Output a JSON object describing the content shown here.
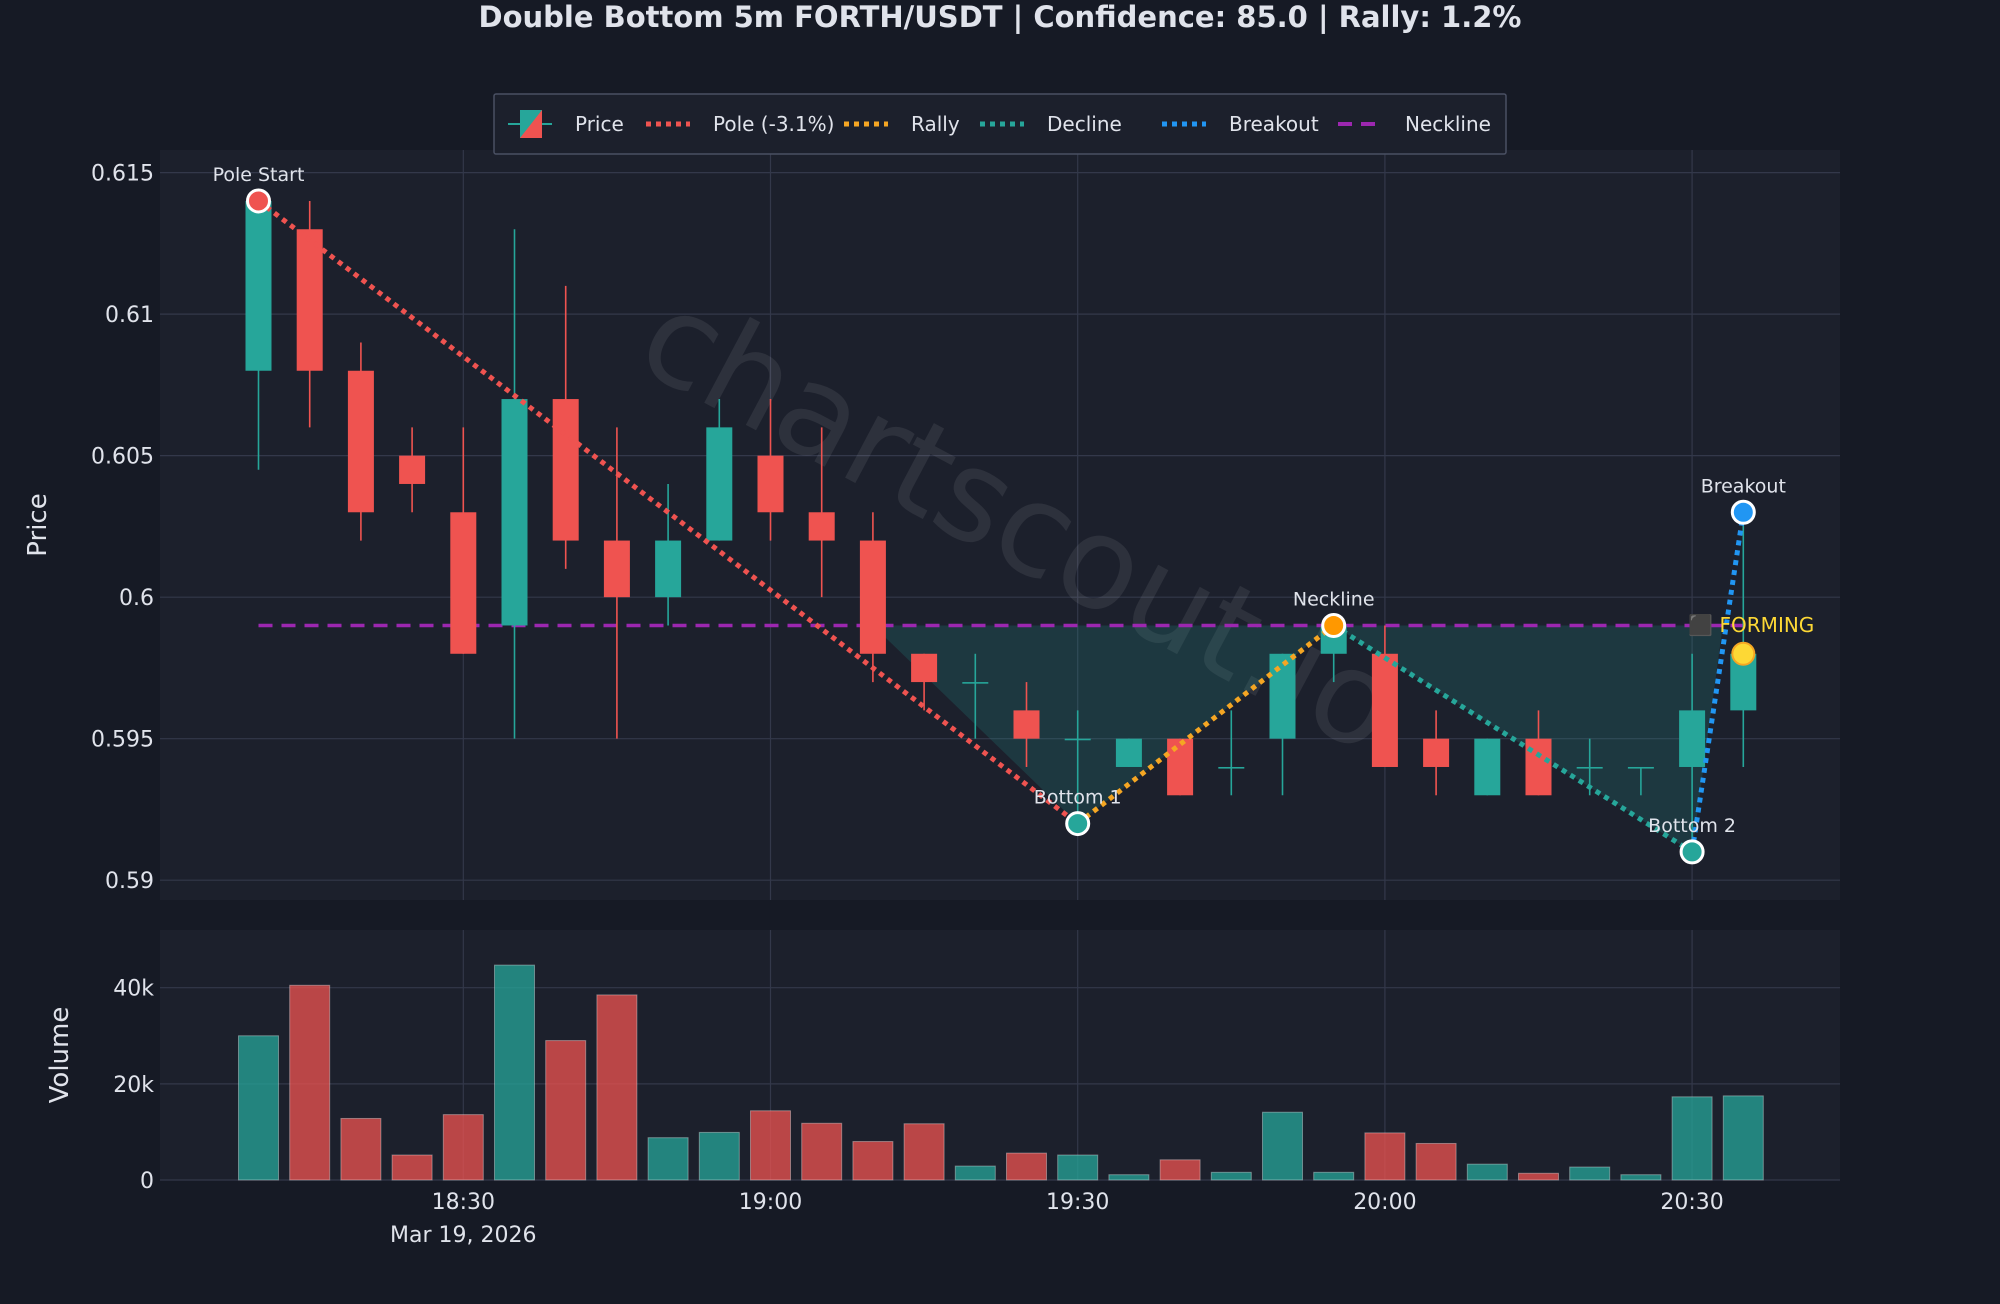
{
  "title": "Double Bottom 5m FORTH/USDT | Confidence: 85.0 | Rally: 1.2%",
  "watermark": "chartscout.io",
  "colors": {
    "background": "#161a25",
    "plot_bg": "#1c202c",
    "grid": "#33384a",
    "up": "#26a69a",
    "down": "#ef5350",
    "pole": "#ef5350",
    "rally": "#f5a623",
    "decline": "#26a69a",
    "breakout": "#2196f3",
    "neckline": "#9c27b0",
    "forming": "#fdd835",
    "text": "#e0e3eb"
  },
  "legend": [
    {
      "key": "price",
      "label": "Price"
    },
    {
      "key": "pole",
      "label": "Pole (-3.1%)"
    },
    {
      "key": "rally",
      "label": "Rally"
    },
    {
      "key": "decline",
      "label": "Decline"
    },
    {
      "key": "breakout",
      "label": "Breakout"
    },
    {
      "key": "neckline",
      "label": "Neckline"
    }
  ],
  "forming_label": "⬛ FORMING",
  "chart_data": [
    {
      "type": "candlestick",
      "ylabel": "Price",
      "ylim": [
        0.5893,
        0.6158
      ],
      "yticks": [
        {
          "value": 0.59,
          "label": "0.59"
        },
        {
          "value": 0.595,
          "label": "0.595"
        },
        {
          "value": 0.6,
          "label": "0.6"
        },
        {
          "value": 0.605,
          "label": "0.605"
        },
        {
          "value": 0.61,
          "label": "0.61"
        },
        {
          "value": 0.615,
          "label": "0.615"
        }
      ],
      "xticks": [
        {
          "time": "18:30",
          "label": "18:30",
          "sublabel": "Mar 19, 2026"
        },
        {
          "time": "19:00",
          "label": "19:00"
        },
        {
          "time": "19:30",
          "label": "19:30"
        },
        {
          "time": "20:00",
          "label": "20:00"
        },
        {
          "time": "20:30",
          "label": "20:30"
        }
      ],
      "candles": [
        {
          "time": "18:10",
          "open": 0.608,
          "high": 0.614,
          "low": 0.6045,
          "close": 0.614
        },
        {
          "time": "18:15",
          "open": 0.613,
          "high": 0.614,
          "low": 0.606,
          "close": 0.608
        },
        {
          "time": "18:20",
          "open": 0.608,
          "high": 0.609,
          "low": 0.602,
          "close": 0.603
        },
        {
          "time": "18:25",
          "open": 0.605,
          "high": 0.606,
          "low": 0.603,
          "close": 0.604
        },
        {
          "time": "18:30",
          "open": 0.603,
          "high": 0.606,
          "low": 0.598,
          "close": 0.598
        },
        {
          "time": "18:35",
          "open": 0.599,
          "high": 0.613,
          "low": 0.595,
          "close": 0.607
        },
        {
          "time": "18:40",
          "open": 0.607,
          "high": 0.611,
          "low": 0.601,
          "close": 0.602
        },
        {
          "time": "18:45",
          "open": 0.602,
          "high": 0.606,
          "low": 0.595,
          "close": 0.6
        },
        {
          "time": "18:50",
          "open": 0.6,
          "high": 0.604,
          "low": 0.599,
          "close": 0.602
        },
        {
          "time": "18:55",
          "open": 0.602,
          "high": 0.607,
          "low": 0.602,
          "close": 0.606
        },
        {
          "time": "19:00",
          "open": 0.605,
          "high": 0.607,
          "low": 0.602,
          "close": 0.603
        },
        {
          "time": "19:05",
          "open": 0.603,
          "high": 0.606,
          "low": 0.6,
          "close": 0.602
        },
        {
          "time": "19:10",
          "open": 0.602,
          "high": 0.603,
          "low": 0.597,
          "close": 0.598
        },
        {
          "time": "19:15",
          "open": 0.598,
          "high": 0.598,
          "low": 0.596,
          "close": 0.597
        },
        {
          "time": "19:20",
          "open": 0.597,
          "high": 0.598,
          "low": 0.595,
          "close": 0.597
        },
        {
          "time": "19:25",
          "open": 0.596,
          "high": 0.597,
          "low": 0.594,
          "close": 0.595
        },
        {
          "time": "19:30",
          "open": 0.595,
          "high": 0.596,
          "low": 0.592,
          "close": 0.595
        },
        {
          "time": "19:35",
          "open": 0.594,
          "high": 0.595,
          "low": 0.594,
          "close": 0.595
        },
        {
          "time": "19:40",
          "open": 0.595,
          "high": 0.595,
          "low": 0.593,
          "close": 0.593
        },
        {
          "time": "19:45",
          "open": 0.594,
          "high": 0.596,
          "low": 0.593,
          "close": 0.594
        },
        {
          "time": "19:50",
          "open": 0.595,
          "high": 0.598,
          "low": 0.593,
          "close": 0.598
        },
        {
          "time": "19:55",
          "open": 0.598,
          "high": 0.599,
          "low": 0.597,
          "close": 0.599
        },
        {
          "time": "20:00",
          "open": 0.598,
          "high": 0.599,
          "low": 0.594,
          "close": 0.594
        },
        {
          "time": "20:05",
          "open": 0.595,
          "high": 0.596,
          "low": 0.593,
          "close": 0.594
        },
        {
          "time": "20:10",
          "open": 0.593,
          "high": 0.595,
          "low": 0.593,
          "close": 0.595
        },
        {
          "time": "20:15",
          "open": 0.595,
          "high": 0.596,
          "low": 0.593,
          "close": 0.593
        },
        {
          "time": "20:20",
          "open": 0.594,
          "high": 0.595,
          "low": 0.593,
          "close": 0.594
        },
        {
          "time": "20:25",
          "open": 0.594,
          "high": 0.594,
          "low": 0.593,
          "close": 0.594
        },
        {
          "time": "20:30",
          "open": 0.594,
          "high": 0.598,
          "low": 0.591,
          "close": 0.596
        },
        {
          "time": "20:35",
          "open": 0.596,
          "high": 0.603,
          "low": 0.594,
          "close": 0.598
        }
      ],
      "neckline": {
        "value": 0.599,
        "from": "18:10",
        "to": "20:35"
      },
      "pattern_lines": [
        {
          "key": "pole",
          "points": [
            {
              "time": "18:10",
              "price": 0.614
            },
            {
              "time": "19:30",
              "price": 0.592
            }
          ]
        },
        {
          "key": "rally",
          "points": [
            {
              "time": "19:30",
              "price": 0.592
            },
            {
              "time": "19:55",
              "price": 0.599
            }
          ]
        },
        {
          "key": "decline",
          "points": [
            {
              "time": "19:55",
              "price": 0.599
            },
            {
              "time": "20:30",
              "price": 0.591
            }
          ]
        },
        {
          "key": "breakout",
          "points": [
            {
              "time": "20:30",
              "price": 0.591
            },
            {
              "time": "20:35",
              "price": 0.603
            }
          ]
        }
      ],
      "markers": [
        {
          "label": "Pole Start",
          "time": "18:10",
          "price": 0.614,
          "color": "#ef5350",
          "label_pos": "above"
        },
        {
          "label": "Bottom 1",
          "time": "19:30",
          "price": 0.592,
          "color": "#26a69a",
          "label_pos": "above"
        },
        {
          "label": "Neckline",
          "time": "19:55",
          "price": 0.599,
          "color": "#ff9800",
          "label_pos": "above"
        },
        {
          "label": "Bottom 2",
          "time": "20:30",
          "price": 0.591,
          "color": "#26a69a",
          "label_pos": "above"
        },
        {
          "label": "Breakout",
          "time": "20:35",
          "price": 0.603,
          "color": "#2196f3",
          "label_pos": "above"
        }
      ],
      "forming_point": {
        "time": "20:35",
        "price": 0.598
      },
      "shaded_region": {
        "top": 0.599,
        "points": [
          {
            "time": "19:10",
            "price": 0.599
          },
          {
            "time": "19:30",
            "price": 0.592
          },
          {
            "time": "19:55",
            "price": 0.599
          },
          {
            "time": "20:30",
            "price": 0.591
          },
          {
            "time": "20:33",
            "price": 0.599
          }
        ]
      }
    },
    {
      "type": "bar",
      "ylabel": "Volume",
      "ylim": [
        0,
        52000
      ],
      "yticks": [
        {
          "value": 0,
          "label": "0"
        },
        {
          "value": 20000,
          "label": "20k"
        },
        {
          "value": 40000,
          "label": "40k"
        }
      ],
      "volumes": [
        30000,
        40500,
        12800,
        5200,
        13600,
        44700,
        29000,
        38500,
        8800,
        9900,
        14400,
        11800,
        8000,
        11700,
        2900,
        5600,
        5200,
        1100,
        4200,
        1600,
        14100,
        1600,
        9800,
        7600,
        3300,
        1400,
        2700,
        1100,
        17300,
        17500
      ]
    }
  ]
}
